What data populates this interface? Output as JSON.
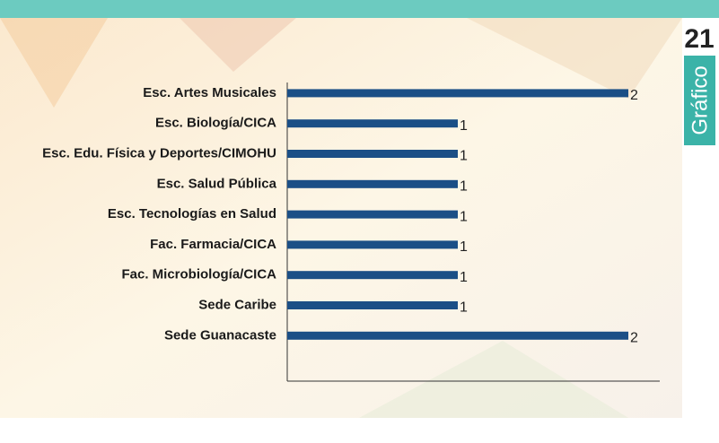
{
  "chart_data": {
    "type": "bar",
    "orientation": "horizontal",
    "categories": [
      "Esc. Artes Musicales",
      "Esc. Biología/CICA",
      "Esc. Edu. Física y Deportes/CIMOHU",
      "Esc.  Salud Pública",
      "Esc. Tecnologías en Salud",
      "Fac. Farmacia/CICA",
      "Fac. Microbiología/CICA",
      "Sede Caribe",
      "Sede Guanacaste"
    ],
    "values": [
      2,
      1,
      1,
      1,
      1,
      1,
      1,
      1,
      2
    ],
    "color": "#1b4f86"
  },
  "badge": {
    "number": "21",
    "label": "Gráfico"
  }
}
